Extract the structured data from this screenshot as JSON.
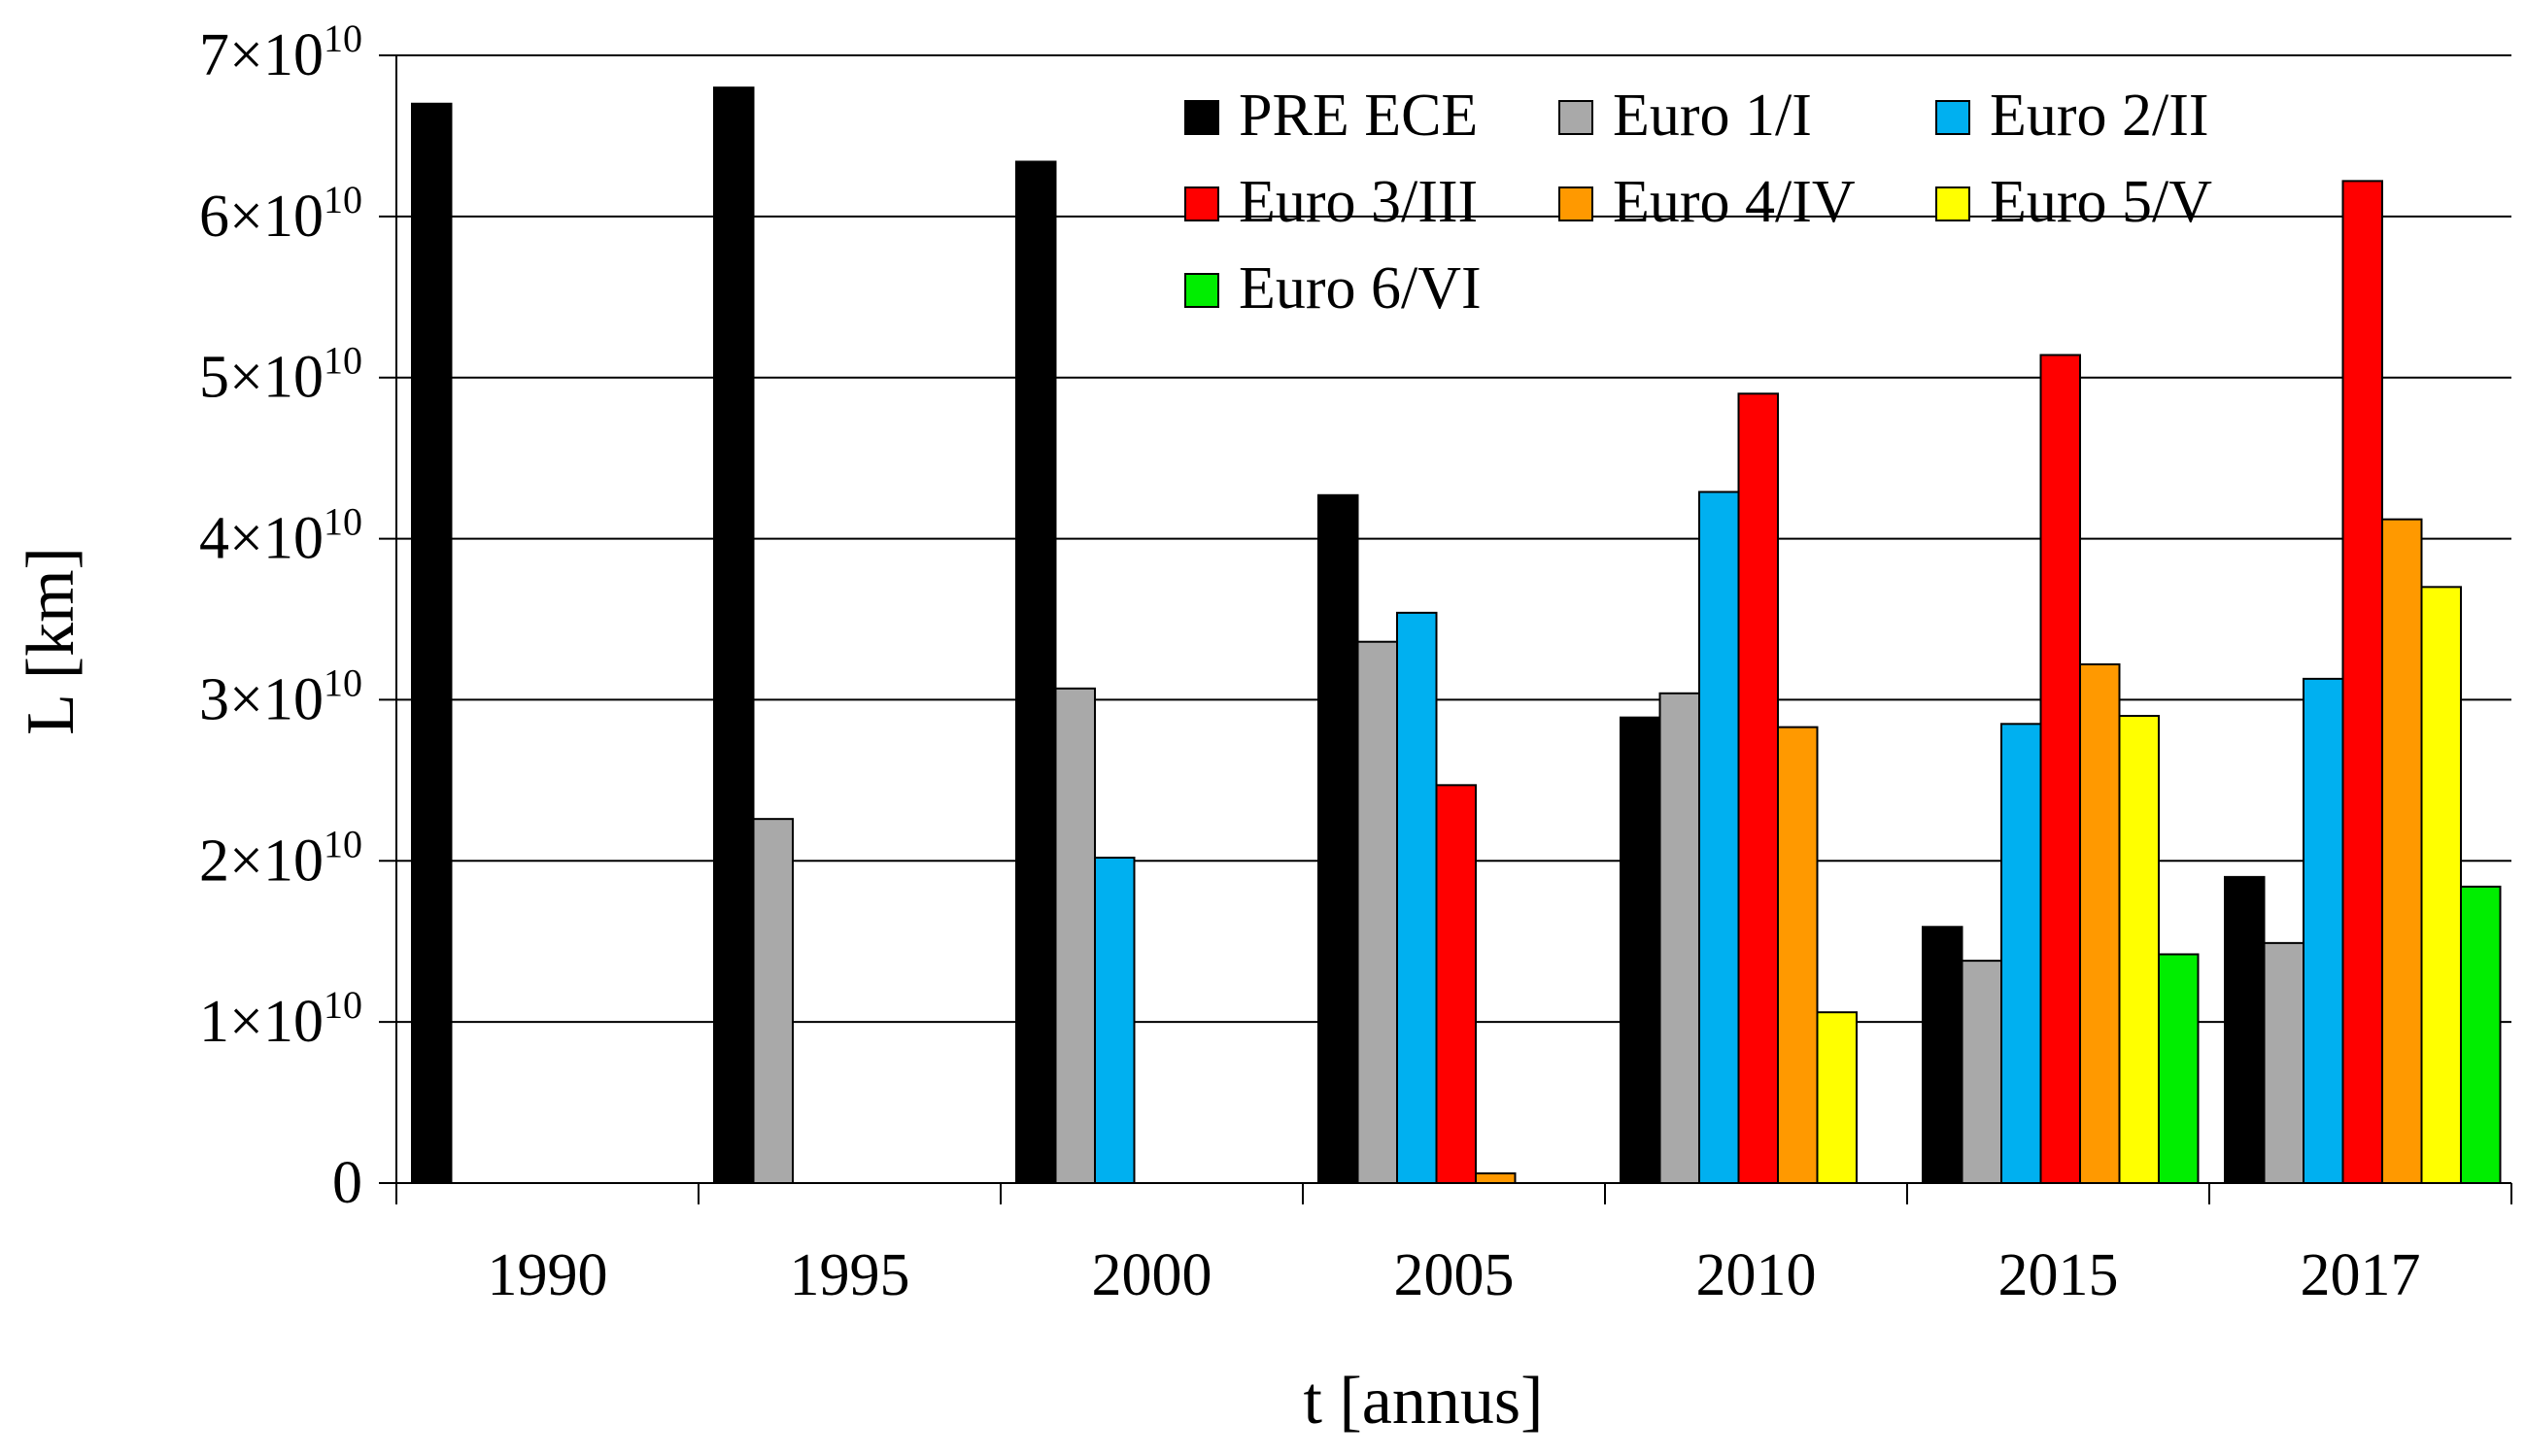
{
  "chart_data": {
    "type": "bar",
    "xlabel": "t [annus]",
    "ylabel": "L [km]",
    "ylim": [
      0,
      70000000000
    ],
    "grid": "horizontal",
    "legend_position": "top-right",
    "categories": [
      "1990",
      "1995",
      "2000",
      "2005",
      "2010",
      "2015",
      "2017"
    ],
    "y_ticks": [
      {
        "value": 0,
        "mantissa": "0",
        "power": ""
      },
      {
        "value": 10000000000,
        "mantissa": "1×10",
        "power": "10"
      },
      {
        "value": 20000000000,
        "mantissa": "2×10",
        "power": "10"
      },
      {
        "value": 30000000000,
        "mantissa": "3×10",
        "power": "10"
      },
      {
        "value": 40000000000,
        "mantissa": "4×10",
        "power": "10"
      },
      {
        "value": 50000000000,
        "mantissa": "5×10",
        "power": "10"
      },
      {
        "value": 60000000000,
        "mantissa": "6×10",
        "power": "10"
      },
      {
        "value": 70000000000,
        "mantissa": "7×10",
        "power": "10"
      }
    ],
    "series": [
      {
        "name": "PRE ECE",
        "color": "#000000",
        "values": [
          67000000000,
          68000000000,
          63400000000,
          42700000000,
          28900000000,
          15900000000,
          19000000000
        ]
      },
      {
        "name": "Euro 1/I",
        "color": "#a9a9a9",
        "values": [
          null,
          22600000000,
          30700000000,
          33600000000,
          30400000000,
          13800000000,
          14900000000
        ]
      },
      {
        "name": "Euro 2/II",
        "color": "#00b0f0",
        "values": [
          null,
          null,
          20200000000,
          35400000000,
          42900000000,
          28500000000,
          31300000000
        ]
      },
      {
        "name": "Euro 3/III",
        "color": "#ff0000",
        "values": [
          null,
          null,
          null,
          24700000000,
          49000000000,
          51400000000,
          62200000000
        ]
      },
      {
        "name": "Euro 4/IV",
        "color": "#ff9900",
        "values": [
          null,
          null,
          null,
          600000000,
          28300000000,
          32200000000,
          41200000000
        ]
      },
      {
        "name": "Euro 5/V",
        "color": "#ffff00",
        "values": [
          null,
          null,
          null,
          null,
          10600000000,
          29000000000,
          37000000000
        ]
      },
      {
        "name": "Euro 6/VI",
        "color": "#00ee00",
        "values": [
          null,
          null,
          null,
          null,
          null,
          14200000000,
          18400000000
        ]
      }
    ]
  }
}
